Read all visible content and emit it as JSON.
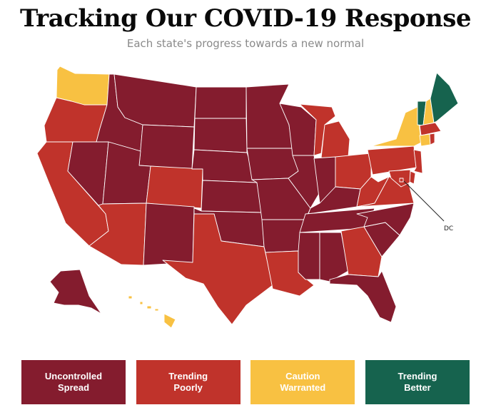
{
  "header": {
    "title": "Tracking Our COVID-19 Response",
    "subtitle": "Each state's progress towards a new normal"
  },
  "colors": {
    "uncontrolled_spread": "#841c2e",
    "trending_poorly": "#c0332b",
    "caution_warranted": "#f8c142",
    "trending_better": "#16634e"
  },
  "map": {
    "callout_label": "DC",
    "states": {
      "WA": "caution_warranted",
      "OR": "trending_poorly",
      "CA": "trending_poorly",
      "NV": "uncontrolled_spread",
      "ID": "uncontrolled_spread",
      "MT": "uncontrolled_spread",
      "WY": "uncontrolled_spread",
      "UT": "uncontrolled_spread",
      "AZ": "trending_poorly",
      "CO": "trending_poorly",
      "NM": "uncontrolled_spread",
      "ND": "uncontrolled_spread",
      "SD": "uncontrolled_spread",
      "NE": "uncontrolled_spread",
      "KS": "uncontrolled_spread",
      "OK": "uncontrolled_spread",
      "TX": "trending_poorly",
      "MN": "uncontrolled_spread",
      "IA": "uncontrolled_spread",
      "MO": "uncontrolled_spread",
      "AR": "uncontrolled_spread",
      "LA": "trending_poorly",
      "WI": "uncontrolled_spread",
      "IL": "uncontrolled_spread",
      "MI": "trending_poorly",
      "IN": "uncontrolled_spread",
      "OH": "trending_poorly",
      "KY": "uncontrolled_spread",
      "TN": "uncontrolled_spread",
      "MS": "uncontrolled_spread",
      "AL": "uncontrolled_spread",
      "GA": "trending_poorly",
      "FL": "uncontrolled_spread",
      "SC": "uncontrolled_spread",
      "NC": "uncontrolled_spread",
      "VA": "trending_poorly",
      "WV": "trending_poorly",
      "PA": "trending_poorly",
      "NY": "caution_warranted",
      "VT": "trending_better",
      "NH": "caution_warranted",
      "ME": "trending_better",
      "MA": "trending_poorly",
      "CT": "caution_warranted",
      "RI": "trending_poorly",
      "NJ": "trending_poorly",
      "DE": "trending_poorly",
      "MD": "trending_poorly",
      "DC": "trending_poorly",
      "AK": "uncontrolled_spread",
      "HI": "caution_warranted"
    }
  },
  "legend": [
    {
      "key": "uncontrolled_spread",
      "label": "Uncontrolled\nSpread"
    },
    {
      "key": "trending_poorly",
      "label": "Trending\nPoorly"
    },
    {
      "key": "caution_warranted",
      "label": "Caution\nWarranted"
    },
    {
      "key": "trending_better",
      "label": "Trending\nBetter"
    }
  ]
}
